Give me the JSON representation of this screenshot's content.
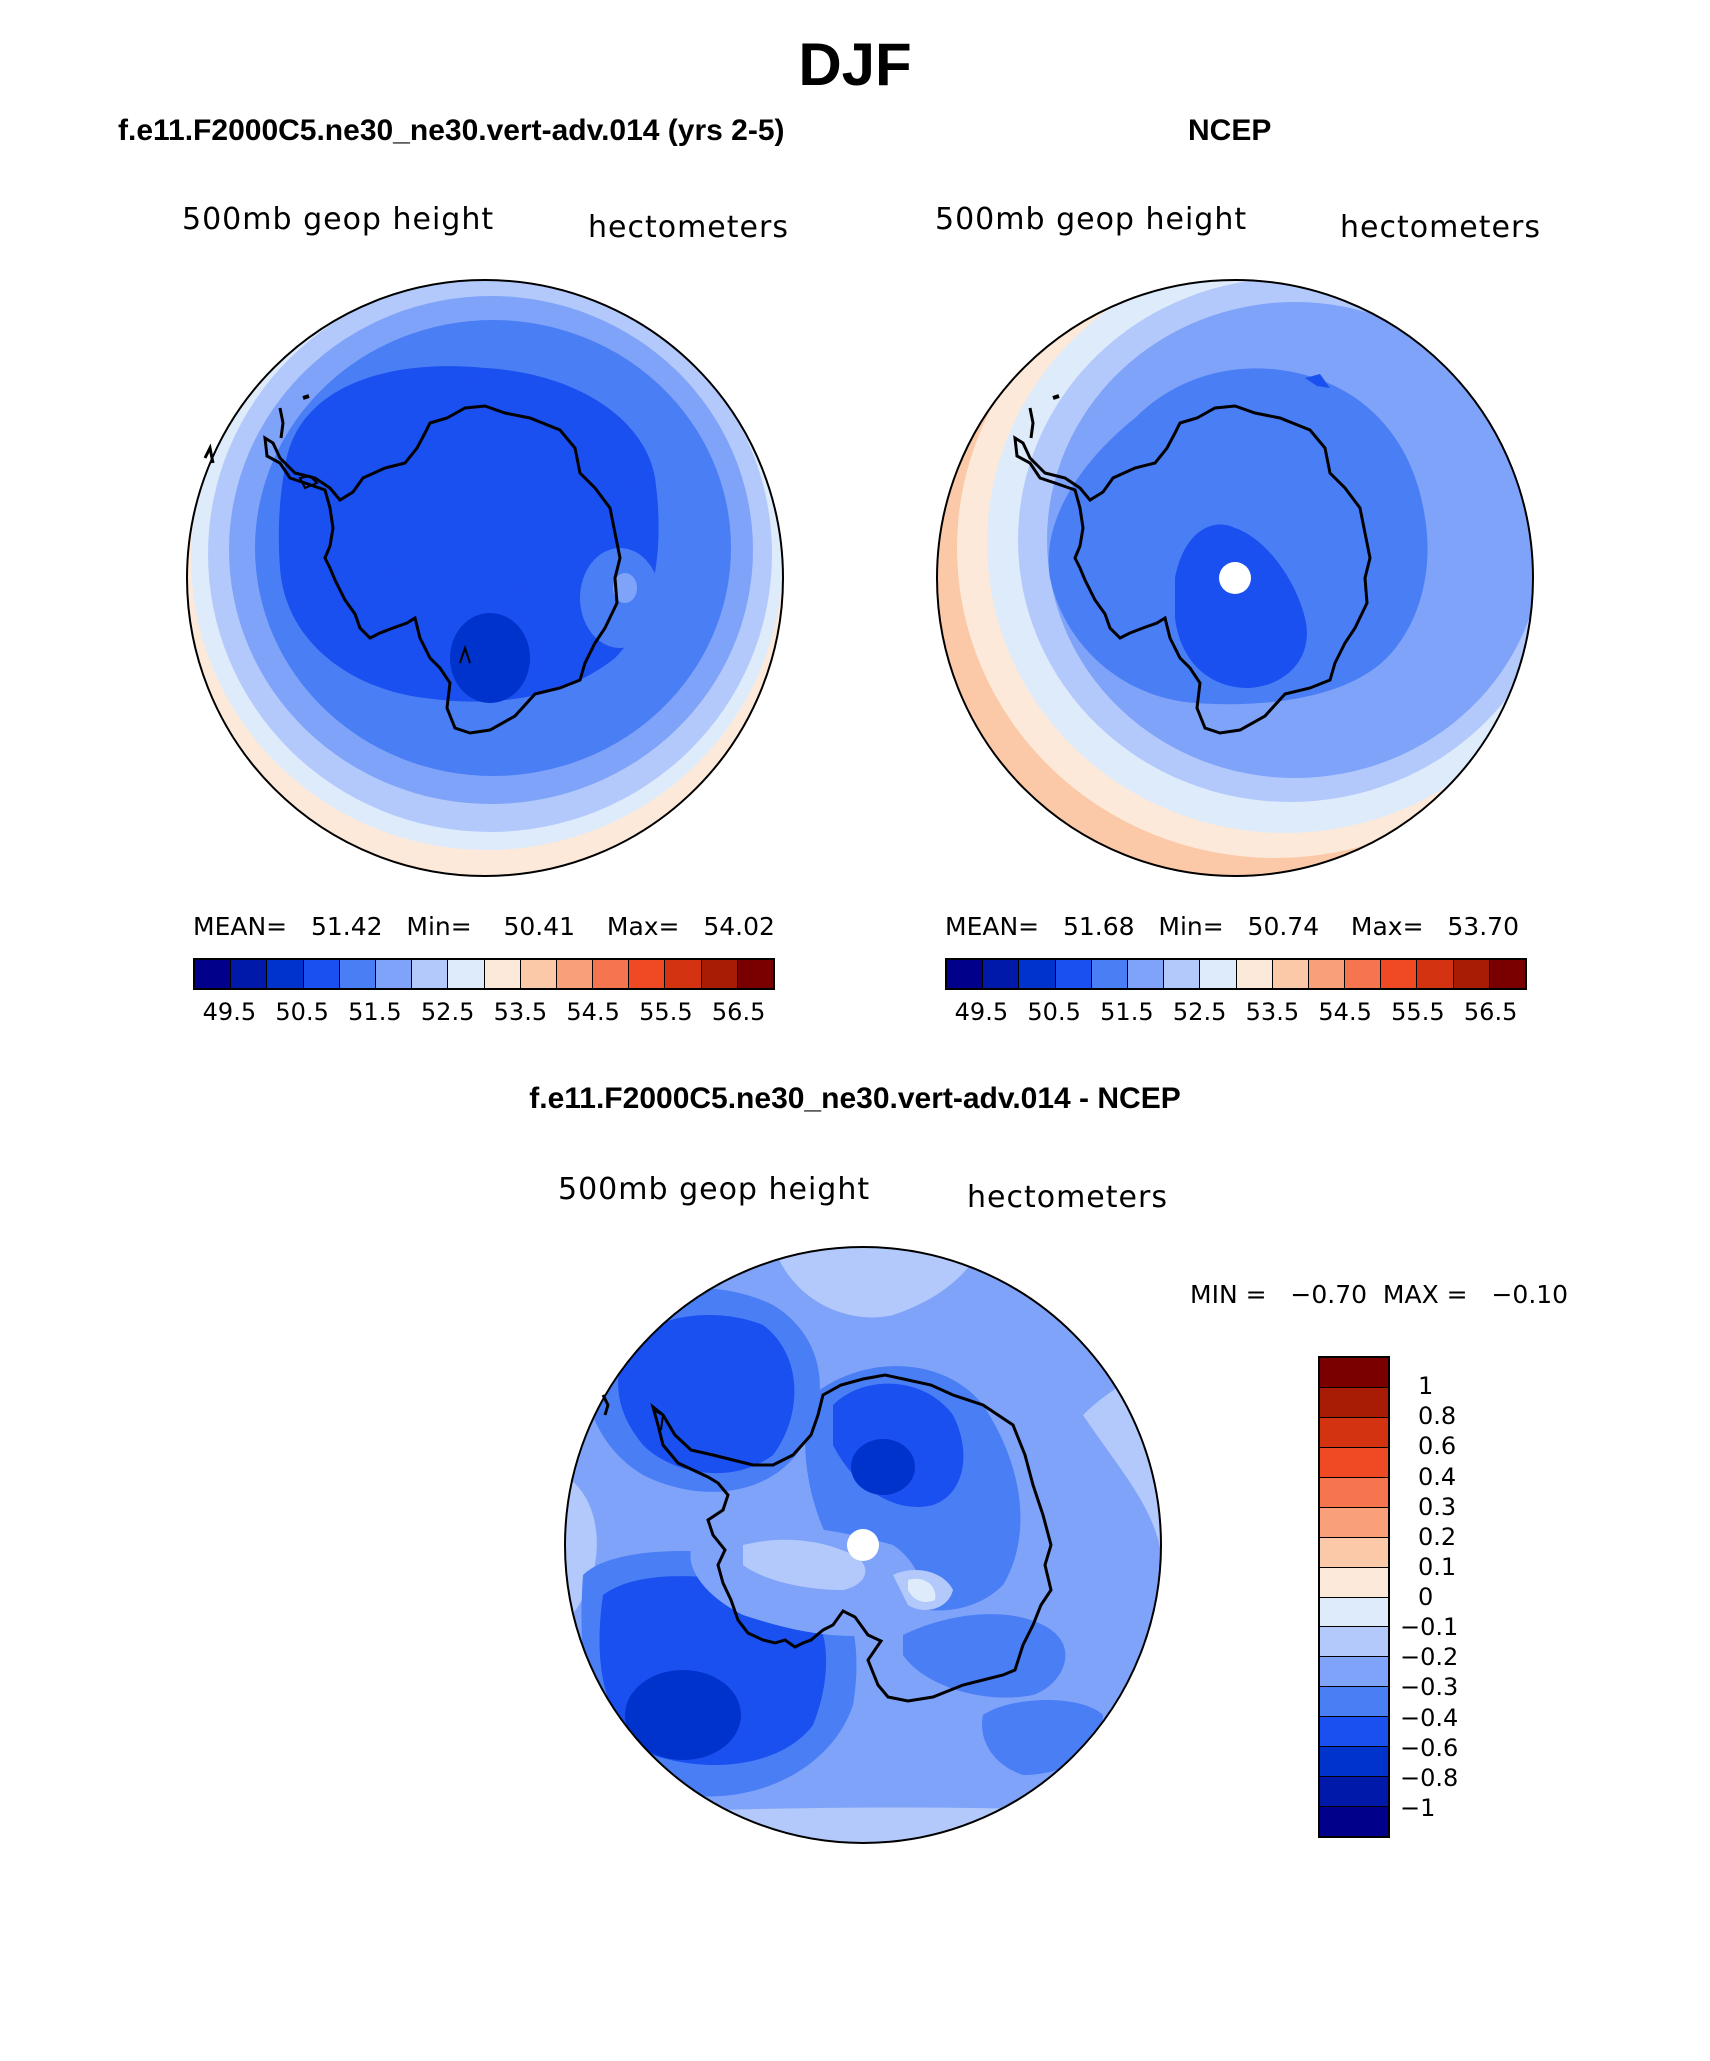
{
  "page_title": "DJF",
  "panels": [
    {
      "title": "f.e11.F2000C5.ne30_ne30.vert-adv.014 (yrs 2-5)",
      "variable_label": "500mb geop height",
      "units_label": "hectometers",
      "stats": {
        "mean_label": "MEAN=",
        "mean": "51.42",
        "min_label": "Min=",
        "min": "50.41",
        "max_label": "Max=",
        "max": "54.02"
      }
    },
    {
      "title": "NCEP",
      "variable_label": "500mb geop height",
      "units_label": "hectometers",
      "stats": {
        "mean_label": "MEAN=",
        "mean": "51.68",
        "min_label": "Min=",
        "min": "50.74",
        "max_label": "Max=",
        "max": "53.70"
      }
    }
  ],
  "diff_panel": {
    "title": "f.e11.F2000C5.ne30_ne30.vert-adv.014 - NCEP",
    "variable_label": "500mb geop height",
    "units_label": "hectometers",
    "min_label": "MIN =",
    "min": "−0.70",
    "max_label": "MAX =",
    "max": "−0.10"
  },
  "field_colorbar": {
    "colors": [
      "#00008b",
      "#0019a8",
      "#0033cc",
      "#1a4ff0",
      "#4a7ef5",
      "#7fa3f8",
      "#b3c9fb",
      "#deebfb",
      "#fde9d9",
      "#fbc8a8",
      "#f9a07a",
      "#f6754f",
      "#f04a24",
      "#d43311",
      "#a81c05",
      "#7a0000"
    ],
    "tick_labels": [
      "49.5",
      "50.5",
      "51.5",
      "52.5",
      "53.5",
      "54.5",
      "55.5",
      "56.5"
    ]
  },
  "diff_colorbar": {
    "colors": [
      "#7a0000",
      "#a81c05",
      "#d43311",
      "#f04a24",
      "#f6754f",
      "#f9a07a",
      "#fbc8a8",
      "#fde9d9",
      "#deebfb",
      "#b3c9fb",
      "#7fa3f8",
      "#4a7ef5",
      "#1a4ff0",
      "#0033cc",
      "#0019a8",
      "#00008b"
    ],
    "tick_labels": [
      "1",
      "0.8",
      "0.6",
      "0.4",
      "0.3",
      "0.2",
      "0.1",
      "0",
      "−0.1",
      "−0.2",
      "−0.3",
      "−0.4",
      "−0.6",
      "−0.8",
      "−1"
    ]
  },
  "colors": {
    "ring_salmon": "#fde9d9",
    "ring_light": "#deebfb",
    "ring_b1": "#b3c9fb",
    "ring_b2": "#7fa3f8",
    "ring_b3": "#4a7ef5",
    "ring_b4": "#1a4ff0",
    "ring_b5": "#0033cc",
    "coastline": "#000000"
  }
}
